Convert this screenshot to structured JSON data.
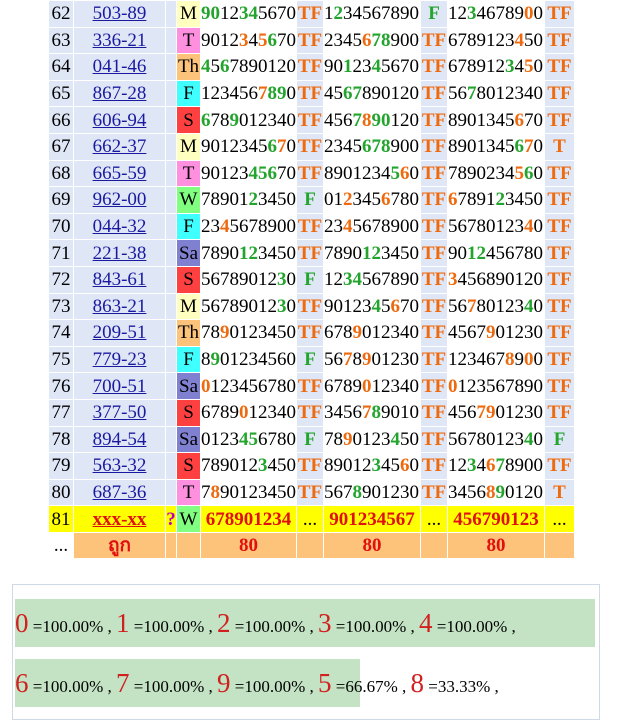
{
  "rows": [
    {
      "no": "62",
      "code": "503-89",
      "day": "M",
      "digits": "9012345670",
      "result": "TF",
      "digits2": "1234567890",
      "result2": "F",
      "digits3": "1234678900",
      "result3": "TF"
    },
    {
      "no": "63",
      "code": "336-21",
      "day": "T",
      "digits": "9012345670",
      "result": "TF",
      "digits2": "2345678900",
      "result2": "TF",
      "digits3": "6789123450",
      "result3": "TF"
    },
    {
      "no": "64",
      "code": "041-46",
      "day": "Th",
      "digits": "4567890120",
      "result": "TF",
      "digits2": "9012345670",
      "result2": "TF",
      "digits3": "6789123450",
      "result3": "TF"
    }
  ],
  "table": {
    "rows": [
      {
        "no": "62",
        "code": "503-89",
        "day": "M",
        "day_color": "#ffffc0",
        "d1": "9012345670",
        "c1": "ggkkggkkkk",
        "r1": "TF",
        "d2": "1234567890",
        "c2": "kgkkkkkkkk",
        "r2": "F",
        "d3": "1234678900",
        "c3": "kkgkkkkkok",
        "r3": "TF"
      },
      {
        "no": "63",
        "code": "336-21",
        "day": "T",
        "day_color": "#ff90e0",
        "d1": "9012345670",
        "c1": "kkkkokogkk",
        "r1": "TF",
        "d2": "2345678900",
        "c2": "kkkkoggkkk",
        "r2": "TF",
        "d3": "6789123450",
        "c3": "kkkkkkkokk",
        "r3": "TF"
      },
      {
        "no": "64",
        "code": "041-46",
        "day": "Th",
        "day_color": "#fdc37a",
        "d1": "4567890120",
        "c1": "gkgkkkkkkk",
        "r1": "TF",
        "d2": "9012345670",
        "c2": "kkgkkgkkkk",
        "r2": "TF",
        "d3": "6789123450",
        "c3": "kkkkkkgkok",
        "r3": "TF"
      },
      {
        "no": "65",
        "code": "867-28",
        "day": "F",
        "day_color": "#40ffff",
        "d1": "1234567890",
        "c1": "kkkkkkoggk",
        "r1": "TF",
        "d2": "4567890120",
        "c2": "kkggkkkkkk",
        "r2": "TF",
        "d3": "5678012340",
        "c3": "kkgkkkkkkk",
        "r3": "TF"
      },
      {
        "no": "66",
        "code": "606-94",
        "day": "S",
        "day_color": "#ff4040",
        "d1": "6789012340",
        "c1": "gkkgkkkkkk",
        "r1": "TF",
        "d2": "4567890120",
        "c2": "kkkgoggkkk",
        "r2": "TF",
        "d3": "8901345670",
        "c3": "kkkkkkkokk",
        "r3": "TF"
      },
      {
        "no": "67",
        "code": "662-37",
        "day": "M",
        "day_color": "#ffffc0",
        "d1": "9012345670",
        "c1": "kkkkkkkgok",
        "r1": "TF",
        "d2": "2345678900",
        "c2": "kkkkgggkkk",
        "r2": "TF",
        "d3": "8901345670",
        "c3": "kkkkkkkgok",
        "r3": "T"
      },
      {
        "no": "68",
        "code": "665-59",
        "day": "T",
        "day_color": "#ff90e0",
        "d1": "9012345670",
        "c1": "kkkkkgggkk",
        "r1": "TF",
        "d2": "8901234560",
        "c2": "kkkkkkkgok",
        "r2": "TF",
        "d3": "7890234560",
        "c3": "kkkkkkkogk",
        "r3": "TF"
      },
      {
        "no": "69",
        "code": "962-00",
        "day": "W",
        "day_color": "#80ff80",
        "d1": "7890123450",
        "c1": "kkkkkgkkkk",
        "r1": "F",
        "d2": "0123456780",
        "c2": "kkokkkokkk",
        "r2": "TF",
        "d3": "6789123450",
        "c3": "okkkkgkkkk",
        "r3": "TF"
      },
      {
        "no": "70",
        "code": "044-32",
        "day": "F",
        "day_color": "#40ffff",
        "d1": "2345678900",
        "c1": "kkokkkkkkk",
        "r1": "TF",
        "d2": "2345678900",
        "c2": "kkokkkkkkk",
        "r2": "TF",
        "d3": "5678012340",
        "c3": "kkkkkkkkok",
        "r3": "TF"
      },
      {
        "no": "71",
        "code": "221-38",
        "day": "Sa",
        "day_color": "#8080d0",
        "d1": "7890123450",
        "c1": "kkkkggkkkk",
        "r1": "TF",
        "d2": "7890123450",
        "c2": "kkkkggkkkk",
        "r2": "TF",
        "d3": "9012456780",
        "c3": "kkggkkkkkk",
        "r3": "TF"
      },
      {
        "no": "72",
        "code": "843-61",
        "day": "S",
        "day_color": "#ff4040",
        "d1": "5678901230",
        "c1": "kkkkkkkkgk",
        "r1": "F",
        "d2": "1234567890",
        "c2": "kkggkkkkkk",
        "r2": "TF",
        "d3": "3456890120",
        "c3": "okkkkkkkkk",
        "r3": "TF"
      },
      {
        "no": "73",
        "code": "863-21",
        "day": "M",
        "day_color": "#ffffc0",
        "d1": "5678901230",
        "c1": "kkkkkkkkgk",
        "r1": "TF",
        "d2": "9012345670",
        "c2": "kkkkkgkokk",
        "r2": "TF",
        "d3": "5678012340",
        "c3": "kkokkkkkgk",
        "r3": "TF"
      },
      {
        "no": "74",
        "code": "209-51",
        "day": "Th",
        "day_color": "#fdc37a",
        "d1": "7890123450",
        "c1": "kkokkkkkkk",
        "r1": "TF",
        "d2": "6789012340",
        "c2": "kkkokkkkkk",
        "r2": "TF",
        "d3": "4567901230",
        "c3": "kkkkokkkkk",
        "r3": "TF"
      },
      {
        "no": "75",
        "code": "779-23",
        "day": "F",
        "day_color": "#40ffff",
        "d1": "8901234560",
        "c1": "kgkkkkkkkk",
        "r1": "F",
        "d2": "5678901230",
        "c2": "kkokokkkkk",
        "r2": "TF",
        "d3": "1234678900",
        "c3": "kkkkkkokok",
        "r3": "TF"
      },
      {
        "no": "76",
        "code": "700-51",
        "day": "Sa",
        "day_color": "#8080d0",
        "d1": "0123456780",
        "c1": "okkkkkkkkk",
        "r1": "TF",
        "d2": "6789012340",
        "c2": "kkkkokkkkk",
        "r2": "TF",
        "d3": "0123567890",
        "c3": "okkkkkkkkk",
        "r3": "TF"
      },
      {
        "no": "77",
        "code": "377-50",
        "day": "S",
        "day_color": "#ff4040",
        "d1": "6789012340",
        "c1": "kkkkokkkkk",
        "r1": "TF",
        "d2": "3456789010",
        "c2": "kkkkogkkkk",
        "r2": "TF",
        "d3": "4567901230",
        "c3": "kkkookkkkk",
        "r3": "TF"
      },
      {
        "no": "78",
        "code": "894-54",
        "day": "Sa",
        "day_color": "#8080d0",
        "d1": "0123456780",
        "c1": "kkkkggkkkk",
        "r1": "F",
        "d2": "7890123450",
        "c2": "kkokkkkgkk",
        "r2": "TF",
        "d3": "5678012340",
        "c3": "kkkkkkkkgk",
        "r3": "F"
      },
      {
        "no": "79",
        "code": "563-32",
        "day": "S",
        "day_color": "#ff4040",
        "d1": "7890123450",
        "c1": "kkkkkkgkkk",
        "r1": "TF",
        "d2": "8901234560",
        "c2": "kkkkkgkkok",
        "r2": "TF",
        "d3": "1234678900",
        "c3": "kkgkogkkkk",
        "r3": "TF"
      },
      {
        "no": "80",
        "code": "687-36",
        "day": "T",
        "day_color": "#ff90e0",
        "d1": "7890123450",
        "c1": "kokkkkkkkk",
        "r1": "TF",
        "d2": "5678901230",
        "c2": "kkkgkkkkkk",
        "r2": "TF",
        "d3": "3456890120",
        "c3": "kkkkogkkkk",
        "r3": "T"
      }
    ]
  },
  "today": {
    "no": "81",
    "code": "xxx-xx",
    "mark": "?",
    "day": "W",
    "day_color": "#80ff80",
    "d1": "678901234",
    "d2": "901234567",
    "d3": "456790123",
    "dots": "..."
  },
  "footer": {
    "ellipsis": "...",
    "label": "ถูก",
    "v1": "80",
    "v2": "80",
    "v3": "80"
  },
  "summary": {
    "row1": [
      {
        "digit": "0",
        "pct": "=100.00%"
      },
      {
        "digit": "1",
        "pct": "=100.00%"
      },
      {
        "digit": "2",
        "pct": "=100.00%"
      },
      {
        "digit": "3",
        "pct": "=100.00%"
      },
      {
        "digit": "4",
        "pct": "=100.00%"
      }
    ],
    "row2": [
      {
        "digit": "6",
        "pct": "=100.00%"
      },
      {
        "digit": "7",
        "pct": "=100.00%"
      },
      {
        "digit": "9",
        "pct": "=100.00%"
      },
      {
        "digit": "5",
        "pct": "=66.67%"
      },
      {
        "digit": "8",
        "pct": "=33.33%"
      }
    ],
    "separator": " , "
  }
}
